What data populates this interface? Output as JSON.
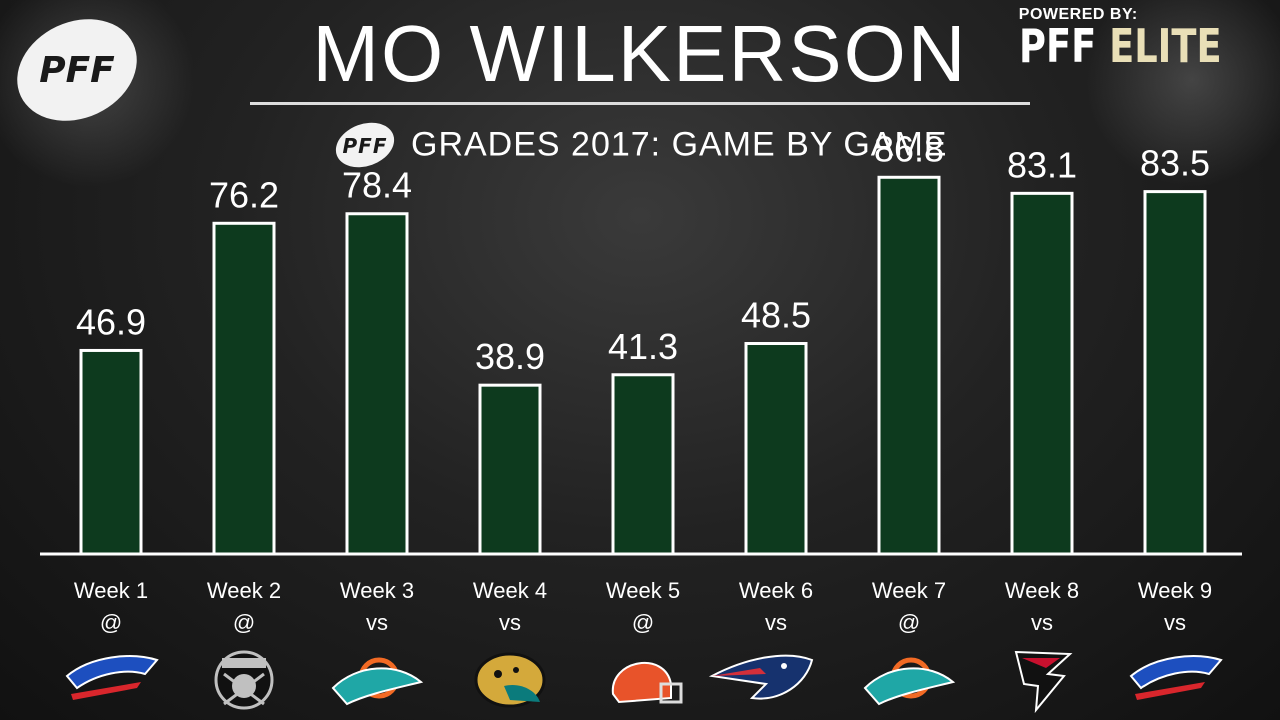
{
  "header": {
    "title": "MO WILKERSON",
    "subtitle": "GRADES 2017: GAME BY GAME",
    "powered_by": "POWERED BY:",
    "brand_part1": "PFF ",
    "brand_part2": "ELITE",
    "logo_text": "PFF"
  },
  "colors": {
    "bar_fill": "#0d3a1e",
    "bar_border": "#ffffff",
    "text": "#ffffff",
    "elite_gold": "#e9dfb7"
  },
  "chart_data": {
    "type": "bar",
    "title": "GRADES 2017: GAME BY GAME",
    "categories": [
      "Week 1",
      "Week 2",
      "Week 3",
      "Week 4",
      "Week 5",
      "Week 6",
      "Week 7",
      "Week 8",
      "Week 9"
    ],
    "locations": [
      "@",
      "@",
      "vs",
      "vs",
      "@",
      "vs",
      "@",
      "vs",
      "vs"
    ],
    "opponent_icons": [
      "bills-logo-icon",
      "raiders-logo-icon",
      "dolphins-logo-icon",
      "jaguars-logo-icon",
      "browns-helmet-icon",
      "patriots-logo-icon",
      "dolphins-logo-icon",
      "falcons-logo-icon",
      "bills-logo-icon"
    ],
    "values": [
      46.9,
      76.2,
      78.4,
      38.9,
      41.3,
      48.5,
      86.8,
      83.1,
      83.5
    ],
    "value_labels": [
      "46.9",
      "76.2",
      "78.4",
      "38.9",
      "41.3",
      "48.5",
      "86.8",
      "83.1",
      "83.5"
    ],
    "ylim": [
      0,
      100
    ],
    "grid": false,
    "legend": "none"
  }
}
